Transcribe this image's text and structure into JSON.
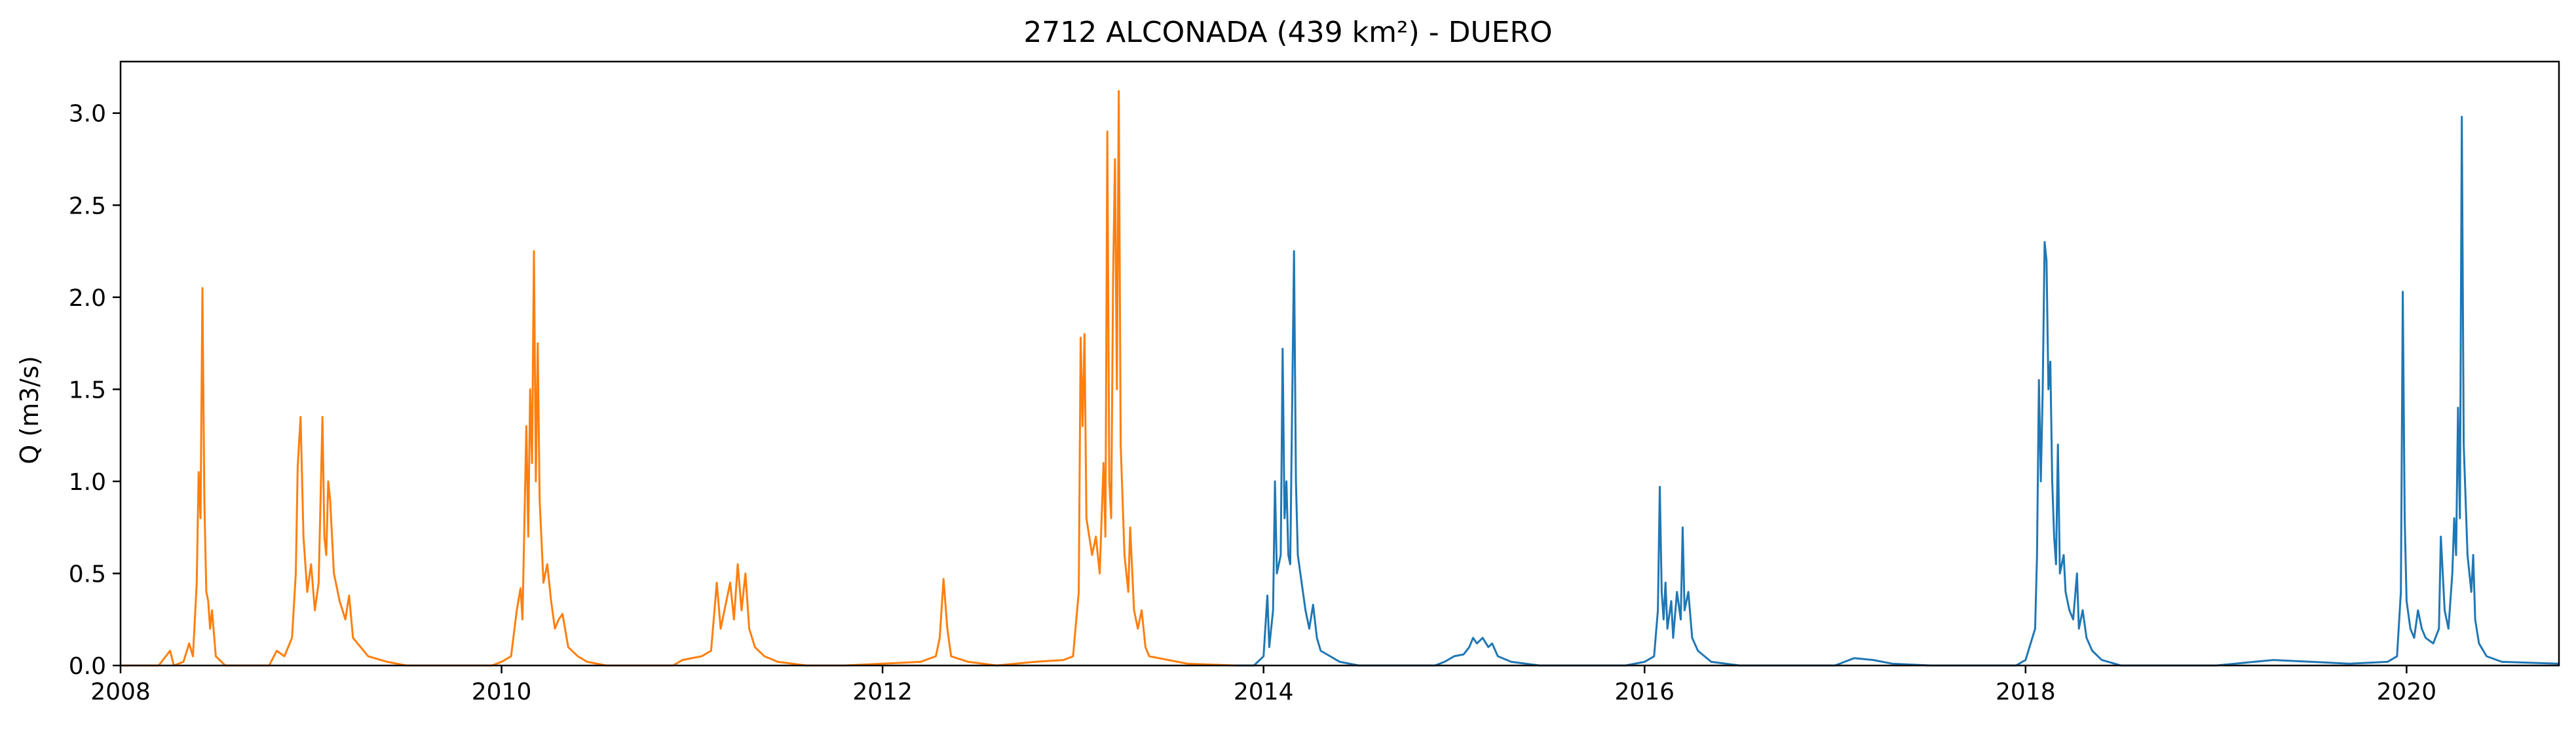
{
  "chart_data": {
    "type": "line",
    "title": "2712 ALCONADA (439 km²) - DUERO",
    "xlabel": "",
    "ylabel": "Q (m3/s)",
    "xlim": [
      2008.0,
      2020.8
    ],
    "ylim": [
      0,
      3.28
    ],
    "grid": false,
    "legend": "none",
    "x_ticks": [
      "2008",
      "2010",
      "2012",
      "2014",
      "2016",
      "2018",
      "2020"
    ],
    "y_ticks": [
      "0.0",
      "0.5",
      "1.0",
      "1.5",
      "2.0",
      "2.5",
      "3.0"
    ],
    "series": [
      {
        "color": "#ff7f0e",
        "points": [
          [
            2008.0,
            0.0
          ],
          [
            2008.2,
            0.0
          ],
          [
            2008.26,
            0.08
          ],
          [
            2008.28,
            0.0
          ],
          [
            2008.33,
            0.02
          ],
          [
            2008.36,
            0.12
          ],
          [
            2008.38,
            0.05
          ],
          [
            2008.4,
            0.45
          ],
          [
            2008.41,
            1.05
          ],
          [
            2008.42,
            0.8
          ],
          [
            2008.43,
            2.05
          ],
          [
            2008.44,
            0.9
          ],
          [
            2008.45,
            0.4
          ],
          [
            2008.46,
            0.35
          ],
          [
            2008.47,
            0.2
          ],
          [
            2008.48,
            0.3
          ],
          [
            2008.5,
            0.05
          ],
          [
            2008.55,
            0.0
          ],
          [
            2008.78,
            0.0
          ],
          [
            2008.82,
            0.08
          ],
          [
            2008.86,
            0.05
          ],
          [
            2008.9,
            0.15
          ],
          [
            2008.92,
            0.5
          ],
          [
            2008.93,
            1.08
          ],
          [
            2008.945,
            1.35
          ],
          [
            2008.96,
            0.7
          ],
          [
            2008.98,
            0.4
          ],
          [
            2009.0,
            0.55
          ],
          [
            2009.02,
            0.3
          ],
          [
            2009.04,
            0.45
          ],
          [
            2009.06,
            1.35
          ],
          [
            2009.07,
            0.7
          ],
          [
            2009.08,
            0.6
          ],
          [
            2009.09,
            1.0
          ],
          [
            2009.1,
            0.9
          ],
          [
            2009.12,
            0.5
          ],
          [
            2009.15,
            0.35
          ],
          [
            2009.18,
            0.25
          ],
          [
            2009.2,
            0.38
          ],
          [
            2009.22,
            0.15
          ],
          [
            2009.3,
            0.05
          ],
          [
            2009.4,
            0.02
          ],
          [
            2009.5,
            0.0
          ],
          [
            2009.95,
            0.0
          ],
          [
            2010.0,
            0.02
          ],
          [
            2010.05,
            0.05
          ],
          [
            2010.08,
            0.3
          ],
          [
            2010.1,
            0.42
          ],
          [
            2010.11,
            0.25
          ],
          [
            2010.13,
            1.3
          ],
          [
            2010.14,
            0.7
          ],
          [
            2010.15,
            1.5
          ],
          [
            2010.16,
            1.1
          ],
          [
            2010.17,
            2.25
          ],
          [
            2010.18,
            1.0
          ],
          [
            2010.19,
            1.75
          ],
          [
            2010.2,
            0.9
          ],
          [
            2010.22,
            0.45
          ],
          [
            2010.24,
            0.55
          ],
          [
            2010.26,
            0.35
          ],
          [
            2010.28,
            0.2
          ],
          [
            2010.3,
            0.25
          ],
          [
            2010.32,
            0.28
          ],
          [
            2010.35,
            0.1
          ],
          [
            2010.4,
            0.05
          ],
          [
            2010.45,
            0.02
          ],
          [
            2010.55,
            0.0
          ],
          [
            2010.9,
            0.0
          ],
          [
            2010.95,
            0.03
          ],
          [
            2011.05,
            0.05
          ],
          [
            2011.1,
            0.08
          ],
          [
            2011.13,
            0.45
          ],
          [
            2011.15,
            0.2
          ],
          [
            2011.2,
            0.45
          ],
          [
            2011.22,
            0.25
          ],
          [
            2011.24,
            0.55
          ],
          [
            2011.26,
            0.3
          ],
          [
            2011.28,
            0.5
          ],
          [
            2011.3,
            0.2
          ],
          [
            2011.33,
            0.1
          ],
          [
            2011.38,
            0.05
          ],
          [
            2011.45,
            0.02
          ],
          [
            2011.6,
            0.0
          ],
          [
            2011.8,
            0.0
          ],
          [
            2012.0,
            0.01
          ],
          [
            2012.2,
            0.02
          ],
          [
            2012.28,
            0.05
          ],
          [
            2012.3,
            0.15
          ],
          [
            2012.32,
            0.47
          ],
          [
            2012.34,
            0.2
          ],
          [
            2012.36,
            0.05
          ],
          [
            2012.45,
            0.02
          ],
          [
            2012.6,
            0.0
          ],
          [
            2012.8,
            0.02
          ],
          [
            2012.95,
            0.03
          ],
          [
            2013.0,
            0.05
          ],
          [
            2013.03,
            0.4
          ],
          [
            2013.04,
            1.78
          ],
          [
            2013.05,
            1.3
          ],
          [
            2013.06,
            1.8
          ],
          [
            2013.07,
            0.8
          ],
          [
            2013.1,
            0.6
          ],
          [
            2013.12,
            0.7
          ],
          [
            2013.14,
            0.5
          ],
          [
            2013.16,
            1.1
          ],
          [
            2013.17,
            0.7
          ],
          [
            2013.18,
            2.9
          ],
          [
            2013.19,
            1.0
          ],
          [
            2013.2,
            0.8
          ],
          [
            2013.21,
            2.1
          ],
          [
            2013.22,
            2.75
          ],
          [
            2013.23,
            1.5
          ],
          [
            2013.24,
            3.12
          ],
          [
            2013.25,
            1.2
          ],
          [
            2013.27,
            0.6
          ],
          [
            2013.29,
            0.4
          ],
          [
            2013.3,
            0.75
          ],
          [
            2013.32,
            0.3
          ],
          [
            2013.34,
            0.2
          ],
          [
            2013.36,
            0.3
          ],
          [
            2013.38,
            0.1
          ],
          [
            2013.4,
            0.05
          ],
          [
            2013.5,
            0.03
          ],
          [
            2013.6,
            0.01
          ],
          [
            2013.85,
            0.0
          ]
        ]
      },
      {
        "color": "#1f77b4",
        "points": [
          [
            2013.85,
            0.0
          ],
          [
            2013.95,
            0.0
          ],
          [
            2014.0,
            0.05
          ],
          [
            2014.02,
            0.38
          ],
          [
            2014.03,
            0.1
          ],
          [
            2014.05,
            0.3
          ],
          [
            2014.06,
            1.0
          ],
          [
            2014.07,
            0.5
          ],
          [
            2014.09,
            0.6
          ],
          [
            2014.1,
            1.72
          ],
          [
            2014.11,
            0.8
          ],
          [
            2014.12,
            1.0
          ],
          [
            2014.13,
            0.6
          ],
          [
            2014.14,
            0.55
          ],
          [
            2014.16,
            2.25
          ],
          [
            2014.17,
            1.0
          ],
          [
            2014.18,
            0.6
          ],
          [
            2014.2,
            0.45
          ],
          [
            2014.22,
            0.3
          ],
          [
            2014.24,
            0.2
          ],
          [
            2014.26,
            0.33
          ],
          [
            2014.28,
            0.15
          ],
          [
            2014.3,
            0.08
          ],
          [
            2014.4,
            0.02
          ],
          [
            2014.5,
            0.0
          ],
          [
            2014.9,
            0.0
          ],
          [
            2014.95,
            0.02
          ],
          [
            2015.0,
            0.05
          ],
          [
            2015.05,
            0.06
          ],
          [
            2015.08,
            0.1
          ],
          [
            2015.1,
            0.15
          ],
          [
            2015.12,
            0.12
          ],
          [
            2015.15,
            0.15
          ],
          [
            2015.18,
            0.1
          ],
          [
            2015.2,
            0.12
          ],
          [
            2015.23,
            0.05
          ],
          [
            2015.3,
            0.02
          ],
          [
            2015.45,
            0.0
          ],
          [
            2015.9,
            0.0
          ],
          [
            2016.0,
            0.02
          ],
          [
            2016.05,
            0.05
          ],
          [
            2016.07,
            0.3
          ],
          [
            2016.08,
            0.97
          ],
          [
            2016.09,
            0.4
          ],
          [
            2016.1,
            0.25
          ],
          [
            2016.11,
            0.45
          ],
          [
            2016.12,
            0.2
          ],
          [
            2016.14,
            0.35
          ],
          [
            2016.15,
            0.15
          ],
          [
            2016.17,
            0.4
          ],
          [
            2016.19,
            0.25
          ],
          [
            2016.2,
            0.75
          ],
          [
            2016.21,
            0.3
          ],
          [
            2016.23,
            0.4
          ],
          [
            2016.25,
            0.15
          ],
          [
            2016.28,
            0.08
          ],
          [
            2016.35,
            0.02
          ],
          [
            2016.5,
            0.0
          ],
          [
            2017.0,
            0.0
          ],
          [
            2017.05,
            0.02
          ],
          [
            2017.1,
            0.04
          ],
          [
            2017.2,
            0.03
          ],
          [
            2017.3,
            0.01
          ],
          [
            2017.5,
            0.0
          ],
          [
            2017.95,
            0.0
          ],
          [
            2018.0,
            0.03
          ],
          [
            2018.05,
            0.2
          ],
          [
            2018.06,
            0.6
          ],
          [
            2018.07,
            1.55
          ],
          [
            2018.08,
            1.0
          ],
          [
            2018.09,
            1.5
          ],
          [
            2018.1,
            2.3
          ],
          [
            2018.11,
            2.2
          ],
          [
            2018.12,
            1.5
          ],
          [
            2018.13,
            1.65
          ],
          [
            2018.14,
            1.0
          ],
          [
            2018.15,
            0.7
          ],
          [
            2018.16,
            0.55
          ],
          [
            2018.17,
            1.2
          ],
          [
            2018.18,
            0.5
          ],
          [
            2018.2,
            0.6
          ],
          [
            2018.21,
            0.4
          ],
          [
            2018.23,
            0.3
          ],
          [
            2018.25,
            0.25
          ],
          [
            2018.27,
            0.5
          ],
          [
            2018.28,
            0.2
          ],
          [
            2018.3,
            0.3
          ],
          [
            2018.32,
            0.15
          ],
          [
            2018.35,
            0.08
          ],
          [
            2018.4,
            0.03
          ],
          [
            2018.5,
            0.0
          ],
          [
            2019.0,
            0.0
          ],
          [
            2019.1,
            0.01
          ],
          [
            2019.3,
            0.03
          ],
          [
            2019.5,
            0.02
          ],
          [
            2019.7,
            0.01
          ],
          [
            2019.9,
            0.02
          ],
          [
            2019.95,
            0.05
          ],
          [
            2019.97,
            0.4
          ],
          [
            2019.98,
            2.03
          ],
          [
            2019.99,
            0.8
          ],
          [
            2020.0,
            0.35
          ],
          [
            2020.02,
            0.2
          ],
          [
            2020.04,
            0.15
          ],
          [
            2020.06,
            0.3
          ],
          [
            2020.08,
            0.2
          ],
          [
            2020.1,
            0.15
          ],
          [
            2020.14,
            0.12
          ],
          [
            2020.17,
            0.2
          ],
          [
            2020.18,
            0.7
          ],
          [
            2020.2,
            0.3
          ],
          [
            2020.22,
            0.2
          ],
          [
            2020.24,
            0.5
          ],
          [
            2020.25,
            0.8
          ],
          [
            2020.26,
            0.6
          ],
          [
            2020.27,
            1.4
          ],
          [
            2020.28,
            0.8
          ],
          [
            2020.29,
            2.98
          ],
          [
            2020.3,
            1.2
          ],
          [
            2020.32,
            0.6
          ],
          [
            2020.34,
            0.4
          ],
          [
            2020.35,
            0.6
          ],
          [
            2020.36,
            0.25
          ],
          [
            2020.38,
            0.12
          ],
          [
            2020.42,
            0.05
          ],
          [
            2020.5,
            0.02
          ],
          [
            2020.8,
            0.01
          ]
        ]
      }
    ]
  }
}
